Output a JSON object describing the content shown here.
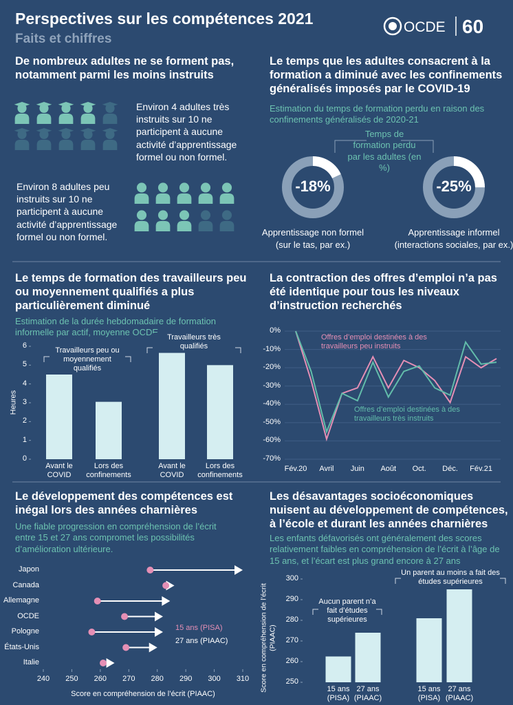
{
  "header": {
    "title": "Perspectives sur les compétences 2021",
    "subtitle": "Faits et chiffres",
    "logo": "OCDE",
    "anniversary": "60"
  },
  "participation": {
    "title": "De nombreux adultes ne se forment pas, notamment parmi les moins instruits",
    "high_skilled_text": "Environ 4 adultes très instruits sur 10 ne participent à aucune activité d’apprentissage formel ou non formel.",
    "low_skilled_text": "Environ 8 adultes peu instruits sur 10 ne participent à aucune activité d’apprentissage formel ou non formel."
  },
  "covid_time": {
    "title": "Le temps que les adultes consacrent à la formation a diminué avec les confinements généralisés imposés par le COVID-19",
    "subtitle": "Estimation du temps de formation perdu en raison des confinements généralisés de 2020-21",
    "center_label": "Temps de formation perdu par les adultes (en %)",
    "donuts": [
      {
        "value": -18,
        "value_label": "-18%",
        "caption": [
          "Apprentissage non formel",
          "(sur le tas, par ex.)"
        ]
      },
      {
        "value": -25,
        "value_label": "-25%",
        "caption": [
          "Apprentissage informel",
          "(interactions sociales, par ex.)"
        ]
      }
    ]
  },
  "chart_data": [
    {
      "type": "bar",
      "title": "Le temps de formation des travailleurs peu ou moyennement qualifiés a plus particulièrement diminué",
      "subtitle": "Estimation de la durée hebdomadaire de formation informelle par actif, moyenne OCDE",
      "y_label": "Heures",
      "categories": [
        "Avant le COVID",
        "Lors des confinements"
      ],
      "series": [
        {
          "name": "Travailleurs peu ou moyennement qualifiés",
          "color": "#d5eef1",
          "values": [
            4.5,
            3.05
          ]
        },
        {
          "name": "Travailleurs très qualifiés",
          "color": "#d5eef1",
          "values": [
            5.65,
            5.0
          ]
        }
      ],
      "ylim": [
        0,
        6
      ],
      "yticks": [
        0,
        1,
        2,
        3,
        4,
        5,
        6
      ]
    },
    {
      "type": "line",
      "title": "La contraction des offres d’emploi n’a pas été identique pour tous les niveaux d’instruction recherchés",
      "categories": [
        "Fév.20",
        null,
        "Avril",
        null,
        "Juin",
        null,
        "Août",
        null,
        "Oct.",
        null,
        "Déc.",
        null,
        "Fév.21",
        null
      ],
      "series": [
        {
          "name": "Offres d’emploi destinées à des travailleurs peu instruits",
          "color": "#e58fb5",
          "values": [
            0,
            -27,
            -59,
            -34,
            -31,
            -14,
            -31,
            -16,
            -20,
            -27,
            -39,
            -14,
            -20,
            -15
          ]
        },
        {
          "name": "Offres d’emploi destinées à des travailleurs très instruits",
          "color": "#62bcaa",
          "values": [
            0,
            -22,
            -55,
            -34,
            -38,
            -17,
            -36,
            -22,
            -19,
            -31,
            -35,
            -6,
            -18,
            -17
          ]
        }
      ],
      "ylim": [
        -70,
        0
      ],
      "yticks": [
        {
          "value": 0,
          "label": "0%"
        },
        {
          "value": -10,
          "label": "-10%"
        },
        {
          "value": -20,
          "label": "-20%"
        },
        {
          "value": -30,
          "label": "-30%"
        },
        {
          "value": -40,
          "label": "-40%"
        },
        {
          "value": -50,
          "label": "-50%"
        },
        {
          "value": -60,
          "label": "-60%"
        },
        {
          "value": -70,
          "label": "-70%"
        }
      ]
    },
    {
      "type": "dumbbell",
      "title": "Le développement des compétences est inégal lors des années charnières",
      "subtitle": "Une fiable progression en compréhension de l’écrit entre 15 et 27 ans compromet les possibilités d’amélioration ultérieure.",
      "x_label": "Score en compréhension de l’écrit (PIAAC)",
      "categories": [
        "Japon",
        "Canada",
        "Allemagne",
        "OCDE",
        "Pologne",
        "États-Unis",
        "Italie"
      ],
      "series": [
        {
          "name": "15 ans (PISA)",
          "color": "#e58fb5",
          "values": [
            277.5,
            283,
            259,
            268.5,
            257,
            269,
            261
          ]
        },
        {
          "name": "27 ans (PIAAC)",
          "color": "#ffffff",
          "values": [
            310,
            286,
            284.5,
            282,
            282,
            280,
            265
          ]
        }
      ],
      "xlim": [
        240,
        310
      ],
      "xticks": [
        240,
        250,
        260,
        270,
        280,
        290,
        300,
        310
      ]
    },
    {
      "type": "bar",
      "title": "Les désavantages socioéconomiques nuisent au développement de compétences, à l’école et durant les années charnières",
      "subtitle": "Les enfants défavorisés ont généralement des scores relativement faibles en compréhension de l’écrit à l’âge de 15 ans, et l’écart est plus grand encore à 27 ans",
      "y_label": "Score en compréhension de l’écrit (PIAAC)",
      "categories": [
        "15 ans (PISA)",
        "27 ans (PIAAC)"
      ],
      "series": [
        {
          "name": "Aucun parent n’a fait d’études supérieures",
          "color": "#d5eef1",
          "values": [
            262.5,
            274
          ]
        },
        {
          "name": "Un parent au moins a fait des études supérieures",
          "color": "#d5eef1",
          "values": [
            281,
            295
          ]
        }
      ],
      "ylim": [
        250,
        300
      ],
      "yticks": [
        250,
        260,
        270,
        280,
        290,
        300
      ]
    }
  ]
}
